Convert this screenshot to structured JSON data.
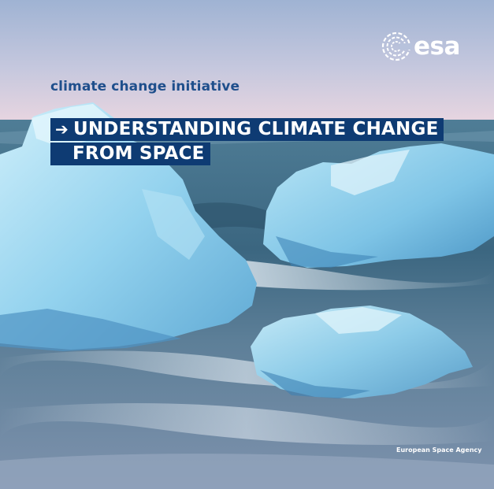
{
  "cover": {
    "logo_text": "esa",
    "logo_icon": "esa-swirl-icon",
    "subtitle": "climate change initiative",
    "title_line1": "UNDERSTANDING CLIMATE CHANGE",
    "title_line2": "FROM SPACE",
    "title_arrow": "➔",
    "agency": "European Space Agency"
  },
  "colors": {
    "title_bg": "#0e3b73",
    "subtitle_text": "#1f4f8c",
    "sky_top": "#9fb3d3",
    "sky_bottom": "#e9d7e2",
    "sea": "#3e6e8a",
    "ice": "#9fd6ee"
  }
}
